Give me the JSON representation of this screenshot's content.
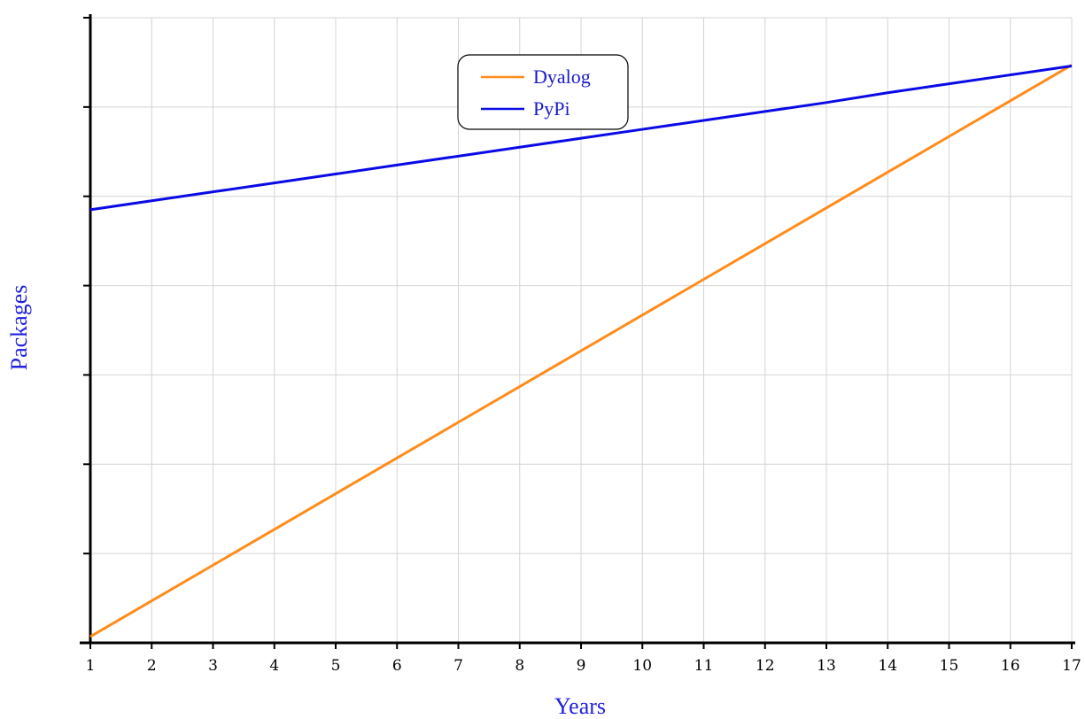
{
  "chart_data": {
    "type": "line",
    "title": "",
    "xlabel": "Years",
    "ylabel": "Packages",
    "label_color": "#1f1fdc",
    "x": [
      1,
      2,
      3,
      4,
      5,
      6,
      7,
      8,
      9,
      10,
      11,
      12,
      13,
      14,
      15,
      16,
      17
    ],
    "x_tick_labels": [
      "1",
      "2",
      "3",
      "4",
      "5",
      "6",
      "7",
      "8",
      "9",
      "10",
      "11",
      "12",
      "13",
      "14",
      "15",
      "16",
      "17"
    ],
    "xlim": [
      1,
      17
    ],
    "ylim": [
      0,
      7
    ],
    "y_tick_labels_shown": false,
    "grid": true,
    "legend_position": "top-center",
    "series": [
      {
        "name": "Dyalog",
        "color": "#ff8c1a",
        "values": [
          0.07,
          0.47,
          0.87,
          1.27,
          1.67,
          2.07,
          2.47,
          2.87,
          3.27,
          3.67,
          4.07,
          4.47,
          4.87,
          5.27,
          5.67,
          6.07,
          6.47
        ]
      },
      {
        "name": "PyPi",
        "color": "#0a0ae6",
        "values": [
          4.85,
          4.95,
          5.05,
          5.15,
          5.25,
          5.35,
          5.45,
          5.55,
          5.65,
          5.75,
          5.85,
          5.95,
          6.05,
          6.16,
          6.26,
          6.36,
          6.46
        ]
      }
    ]
  }
}
